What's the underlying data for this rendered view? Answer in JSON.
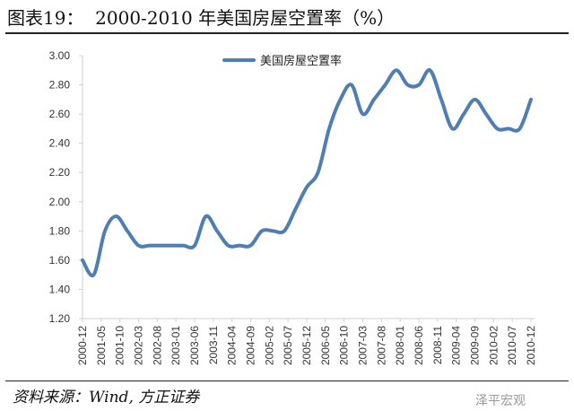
{
  "title": "图表19：  2000-2010 年美国房屋空置率（%）",
  "source": "资料来源：Wind,  方正证券",
  "watermark": "泽平宏观",
  "chart_data": {
    "type": "line",
    "title": "",
    "xlabel": "",
    "ylabel": "",
    "ylim": [
      1.2,
      3.0
    ],
    "yticks": [
      "3.00",
      "2.80",
      "2.60",
      "2.40",
      "2.20",
      "2.00",
      "1.80",
      "1.60",
      "1.40",
      "1.20"
    ],
    "xticks": [
      "2000-12",
      "2001-05",
      "2001-10",
      "2002-03",
      "2002-08",
      "2003-01",
      "2003-06",
      "2003-11",
      "2004-04",
      "2004-09",
      "2005-02",
      "2005-07",
      "2005-12",
      "2006-05",
      "2006-10",
      "2007-03",
      "2007-08",
      "2008-01",
      "2008-06",
      "2008-11",
      "2009-04",
      "2009-09",
      "2010-02",
      "2010-07",
      "2010-12"
    ],
    "grid": false,
    "legend_position": "top-center",
    "color": "#4f7eb4",
    "series": [
      {
        "name": "美国房屋空置率",
        "x": [
          "2000-12",
          "2001-03",
          "2001-06",
          "2001-09",
          "2001-12",
          "2002-03",
          "2002-06",
          "2002-09",
          "2002-12",
          "2003-03",
          "2003-06",
          "2003-09",
          "2003-12",
          "2004-03",
          "2004-06",
          "2004-09",
          "2004-12",
          "2005-03",
          "2005-06",
          "2005-09",
          "2005-12",
          "2006-03",
          "2006-06",
          "2006-09",
          "2006-12",
          "2007-03",
          "2007-06",
          "2007-09",
          "2007-12",
          "2008-03",
          "2008-06",
          "2008-09",
          "2008-12",
          "2009-03",
          "2009-06",
          "2009-09",
          "2009-12",
          "2010-03",
          "2010-06",
          "2010-09",
          "2010-12"
        ],
        "values": [
          1.6,
          1.5,
          1.8,
          1.9,
          1.8,
          1.7,
          1.7,
          1.7,
          1.7,
          1.7,
          1.7,
          1.9,
          1.8,
          1.7,
          1.7,
          1.7,
          1.8,
          1.8,
          1.8,
          1.95,
          2.1,
          2.2,
          2.5,
          2.7,
          2.8,
          2.6,
          2.7,
          2.8,
          2.9,
          2.8,
          2.8,
          2.9,
          2.7,
          2.5,
          2.6,
          2.7,
          2.6,
          2.5,
          2.5,
          2.5,
          2.7
        ]
      }
    ]
  }
}
